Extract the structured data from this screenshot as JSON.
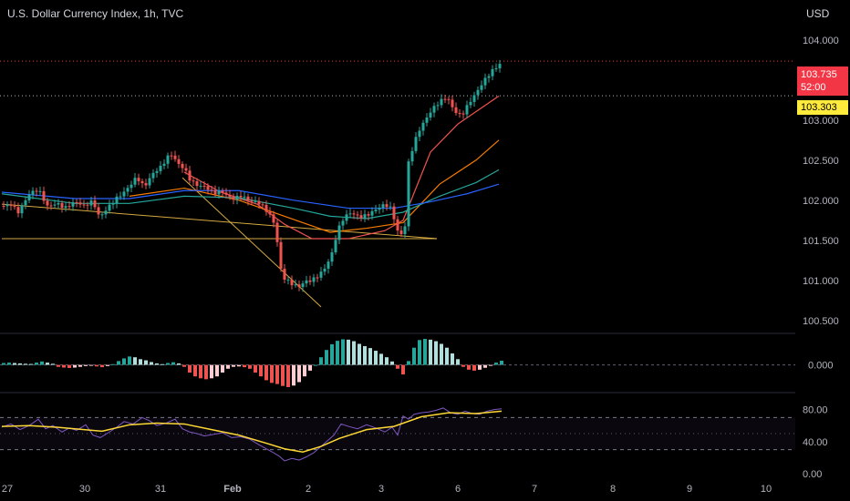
{
  "header": {
    "title": "U.S. Dollar Currency Index, 1h, TVC",
    "currency": "USD"
  },
  "price_tags": {
    "last_price": "103.735",
    "countdown": "52:00",
    "marked_price": "103.303"
  },
  "colors": {
    "up": "#26a69a",
    "down": "#ef5350",
    "hist_up": "#b2dfdb",
    "hist_down": "#ffcdd2",
    "ma_fast": "#ef5350",
    "ma_mid": "#f57c00",
    "ma_slow": "#26a69a",
    "ma_long": "#2962ff",
    "trendline": "#f9c74f",
    "rsi": "#7e57c2",
    "rsi_ma": "#fdd835",
    "grid_text": "#b2b5be",
    "last_price_line": "#f23645",
    "marked_line": "#b2b5be"
  },
  "chart_data": [
    {
      "type": "candlestick",
      "pane": "price",
      "title": "U.S. Dollar Currency Index, 1h, TVC",
      "y_unit": "USD",
      "ylim": [
        100.35,
        104.27
      ],
      "y_ticks": [
        "104.000",
        "103.500",
        "103.000",
        "102.500",
        "102.000",
        "101.500",
        "101.000",
        "100.500"
      ],
      "x_ticks": [
        "27",
        "30",
        "31",
        "Feb",
        "2",
        "3",
        "6",
        "7",
        "8",
        "9",
        "10"
      ],
      "last_price": 103.735,
      "marked_price": 103.303,
      "close_path": [
        [
          0,
          101.93
        ],
        [
          10,
          101.98
        ],
        [
          18,
          101.88
        ],
        [
          30,
          102.05
        ],
        [
          40,
          102.1
        ],
        [
          50,
          101.93
        ],
        [
          60,
          102.0
        ],
        [
          70,
          101.92
        ],
        [
          80,
          101.95
        ],
        [
          90,
          101.9
        ],
        [
          100,
          102.0
        ],
        [
          107,
          101.82
        ],
        [
          115,
          101.92
        ],
        [
          125,
          102.0
        ],
        [
          133,
          102.05
        ],
        [
          140,
          102.15
        ],
        [
          148,
          102.3
        ],
        [
          156,
          102.2
        ],
        [
          165,
          102.35
        ],
        [
          175,
          102.4
        ],
        [
          185,
          102.55
        ],
        [
          193,
          102.45
        ],
        [
          200,
          102.42
        ],
        [
          207,
          102.28
        ],
        [
          215,
          102.2
        ],
        [
          223,
          102.15
        ],
        [
          232,
          102.05
        ],
        [
          242,
          102.1
        ],
        [
          252,
          102.05
        ],
        [
          262,
          102.08
        ],
        [
          272,
          101.97
        ],
        [
          282,
          101.93
        ],
        [
          292,
          101.85
        ],
        [
          300,
          101.72
        ],
        [
          305,
          101.2
        ],
        [
          310,
          101.05
        ],
        [
          318,
          100.95
        ],
        [
          325,
          100.88
        ],
        [
          332,
          100.95
        ],
        [
          340,
          101.0
        ],
        [
          348,
          101.1
        ],
        [
          355,
          101.2
        ],
        [
          362,
          101.35
        ],
        [
          368,
          101.6
        ],
        [
          375,
          101.75
        ],
        [
          383,
          101.82
        ],
        [
          392,
          101.8
        ],
        [
          400,
          101.85
        ],
        [
          410,
          101.9
        ],
        [
          420,
          101.92
        ],
        [
          428,
          101.85
        ],
        [
          433,
          101.6
        ],
        [
          438,
          101.58
        ],
        [
          442,
          101.7
        ],
        [
          446,
          102.5
        ],
        [
          452,
          102.75
        ],
        [
          458,
          102.9
        ],
        [
          465,
          103.0
        ],
        [
          472,
          103.1
        ],
        [
          480,
          103.2
        ],
        [
          488,
          103.3
        ],
        [
          496,
          103.15
        ],
        [
          504,
          103.08
        ],
        [
          512,
          103.2
        ],
        [
          520,
          103.3
        ],
        [
          528,
          103.45
        ],
        [
          536,
          103.6
        ],
        [
          545,
          103.73
        ]
      ],
      "moving_averages": [
        {
          "color": "ma_fast",
          "points": [
            [
              200,
              102.35
            ],
            [
              240,
              102.1
            ],
            [
              280,
              101.95
            ],
            [
              310,
              101.7
            ],
            [
              340,
              101.52
            ],
            [
              380,
              101.52
            ],
            [
              420,
              101.62
            ],
            [
              440,
              101.75
            ],
            [
              470,
              102.6
            ],
            [
              500,
              102.95
            ],
            [
              545,
              103.3
            ]
          ]
        },
        {
          "color": "ma_mid",
          "points": [
            [
              140,
              102.05
            ],
            [
              200,
              102.15
            ],
            [
              260,
              102.0
            ],
            [
              310,
              101.8
            ],
            [
              360,
              101.6
            ],
            [
              400,
              101.65
            ],
            [
              440,
              101.72
            ],
            [
              480,
              102.2
            ],
            [
              520,
              102.5
            ],
            [
              545,
              102.75
            ]
          ]
        },
        {
          "color": "ma_slow",
          "points": [
            [
              0,
              102.08
            ],
            [
              80,
              101.96
            ],
            [
              140,
              101.96
            ],
            [
              200,
              102.05
            ],
            [
              260,
              102.03
            ],
            [
              320,
              101.9
            ],
            [
              360,
              101.8
            ],
            [
              400,
              101.77
            ],
            [
              440,
              101.85
            ],
            [
              480,
              102.05
            ],
            [
              520,
              102.22
            ],
            [
              545,
              102.38
            ]
          ]
        },
        {
          "color": "ma_long",
          "points": [
            [
              0,
              102.1
            ],
            [
              80,
              102.02
            ],
            [
              140,
              102.02
            ],
            [
              200,
              102.12
            ],
            [
              260,
              102.12
            ],
            [
              320,
              102.0
            ],
            [
              380,
              101.9
            ],
            [
              430,
              101.9
            ],
            [
              470,
              101.98
            ],
            [
              510,
              102.08
            ],
            [
              545,
              102.2
            ]
          ]
        }
      ],
      "trendlines": [
        [
          [
            0,
            101.52
          ],
          [
            477,
            101.52
          ]
        ],
        [
          [
            0,
            101.95
          ],
          [
            477,
            101.52
          ]
        ],
        [
          [
            198,
            102.28
          ],
          [
            350,
            100.67
          ]
        ]
      ]
    },
    {
      "type": "histogram",
      "pane": "oscillator",
      "ylim": [
        -0.14,
        0.16
      ],
      "y_ticks": [
        "0.000"
      ],
      "bars": [
        [
          2,
          0.01
        ],
        [
          8,
          0.012
        ],
        [
          14,
          0.01
        ],
        [
          20,
          0.008
        ],
        [
          26,
          0.006
        ],
        [
          32,
          0.005
        ],
        [
          38,
          0.012
        ],
        [
          44,
          0.018
        ],
        [
          50,
          0.012
        ],
        [
          56,
          0.006
        ],
        [
          62,
          -0.01
        ],
        [
          68,
          -0.014
        ],
        [
          74,
          -0.016
        ],
        [
          80,
          -0.014
        ],
        [
          86,
          -0.01
        ],
        [
          92,
          -0.006
        ],
        [
          98,
          -0.004
        ],
        [
          104,
          -0.008
        ],
        [
          110,
          -0.012
        ],
        [
          116,
          -0.006
        ],
        [
          122,
          0.004
        ],
        [
          128,
          0.02
        ],
        [
          134,
          0.034
        ],
        [
          140,
          0.044
        ],
        [
          146,
          0.04
        ],
        [
          152,
          0.03
        ],
        [
          158,
          0.024
        ],
        [
          164,
          0.015
        ],
        [
          170,
          0.008
        ],
        [
          176,
          0.004
        ],
        [
          182,
          0.01
        ],
        [
          188,
          0.014
        ],
        [
          194,
          0.008
        ],
        [
          200,
          -0.01
        ],
        [
          206,
          -0.04
        ],
        [
          212,
          -0.06
        ],
        [
          218,
          -0.07
        ],
        [
          224,
          -0.075
        ],
        [
          230,
          -0.07
        ],
        [
          236,
          -0.06
        ],
        [
          242,
          -0.04
        ],
        [
          248,
          -0.02
        ],
        [
          254,
          -0.01
        ],
        [
          260,
          -0.008
        ],
        [
          266,
          -0.012
        ],
        [
          272,
          -0.02
        ],
        [
          278,
          -0.04
        ],
        [
          284,
          -0.06
        ],
        [
          290,
          -0.08
        ],
        [
          296,
          -0.094
        ],
        [
          302,
          -0.1
        ],
        [
          308,
          -0.11
        ],
        [
          314,
          -0.116
        ],
        [
          320,
          -0.108
        ],
        [
          326,
          -0.09
        ],
        [
          332,
          -0.06
        ],
        [
          338,
          -0.03
        ],
        [
          344,
          0.0
        ],
        [
          350,
          0.04
        ],
        [
          356,
          0.078
        ],
        [
          362,
          0.108
        ],
        [
          368,
          0.126
        ],
        [
          374,
          0.134
        ],
        [
          380,
          0.132
        ],
        [
          386,
          0.124
        ],
        [
          392,
          0.11
        ],
        [
          398,
          0.098
        ],
        [
          404,
          0.088
        ],
        [
          410,
          0.074
        ],
        [
          416,
          0.058
        ],
        [
          422,
          0.04
        ],
        [
          428,
          0.018
        ],
        [
          434,
          -0.02
        ],
        [
          440,
          -0.05
        ],
        [
          446,
          0.02
        ],
        [
          452,
          0.09
        ],
        [
          458,
          0.13
        ],
        [
          464,
          0.136
        ],
        [
          470,
          0.132
        ],
        [
          476,
          0.124
        ],
        [
          482,
          0.11
        ],
        [
          488,
          0.09
        ],
        [
          494,
          0.06
        ],
        [
          500,
          0.03
        ],
        [
          506,
          -0.01
        ],
        [
          512,
          -0.025
        ],
        [
          518,
          -0.03
        ],
        [
          524,
          -0.025
        ],
        [
          530,
          -0.015
        ],
        [
          536,
          -0.005
        ],
        [
          542,
          0.012
        ],
        [
          548,
          0.022
        ]
      ]
    },
    {
      "type": "line",
      "pane": "rsi",
      "ylim": [
        0,
        100
      ],
      "y_ticks": [
        "80.00",
        "40.00",
        "0.00"
      ],
      "bands": [
        30,
        70
      ],
      "mid": 50,
      "series": [
        {
          "color": "rsi",
          "values": [
            [
              0,
              58
            ],
            [
              10,
              62
            ],
            [
              20,
              55
            ],
            [
              30,
              60
            ],
            [
              40,
              68
            ],
            [
              48,
              56
            ],
            [
              56,
              60
            ],
            [
              66,
              52
            ],
            [
              74,
              57
            ],
            [
              82,
              54
            ],
            [
              92,
              61
            ],
            [
              100,
              48
            ],
            [
              108,
              45
            ],
            [
              118,
              52
            ],
            [
              126,
              58
            ],
            [
              134,
              65
            ],
            [
              144,
              62
            ],
            [
              154,
              70
            ],
            [
              162,
              66
            ],
            [
              170,
              60
            ],
            [
              180,
              63
            ],
            [
              190,
              68
            ],
            [
              198,
              56
            ],
            [
              206,
              52
            ],
            [
              214,
              50
            ],
            [
              222,
              47
            ],
            [
              232,
              49
            ],
            [
              242,
              51
            ],
            [
              252,
              45
            ],
            [
              262,
              46
            ],
            [
              272,
              43
            ],
            [
              282,
              36
            ],
            [
              290,
              31
            ],
            [
              298,
              26
            ],
            [
              304,
              22
            ],
            [
              310,
              16
            ],
            [
              318,
              19
            ],
            [
              326,
              17
            ],
            [
              334,
              21
            ],
            [
              342,
              26
            ],
            [
              350,
              34
            ],
            [
              356,
              40
            ],
            [
              364,
              48
            ],
            [
              372,
              62
            ],
            [
              380,
              59
            ],
            [
              390,
              56
            ],
            [
              400,
              61
            ],
            [
              410,
              57
            ],
            [
              420,
              52
            ],
            [
              428,
              58
            ],
            [
              434,
              48
            ],
            [
              440,
              72
            ],
            [
              446,
              68
            ],
            [
              452,
              74
            ],
            [
              460,
              76
            ],
            [
              468,
              77
            ],
            [
              476,
              79
            ],
            [
              484,
              82
            ],
            [
              492,
              76
            ],
            [
              500,
              74
            ],
            [
              508,
              78
            ],
            [
              516,
              75
            ],
            [
              524,
              74
            ],
            [
              532,
              78
            ],
            [
              540,
              80
            ],
            [
              548,
              81
            ]
          ]
        },
        {
          "color": "rsi_ma",
          "values": [
            [
              0,
              59
            ],
            [
              30,
              60
            ],
            [
              60,
              58
            ],
            [
              90,
              55
            ],
            [
              110,
              53
            ],
            [
              140,
              61
            ],
            [
              170,
              63
            ],
            [
              200,
              62
            ],
            [
              230,
              55
            ],
            [
              260,
              48
            ],
            [
              290,
              38
            ],
            [
              310,
              31
            ],
            [
              330,
              27
            ],
            [
              350,
              34
            ],
            [
              370,
              44
            ],
            [
              400,
              55
            ],
            [
              430,
              59
            ],
            [
              460,
              71
            ],
            [
              490,
              76
            ],
            [
              520,
              75
            ],
            [
              548,
              78
            ]
          ]
        }
      ]
    }
  ]
}
